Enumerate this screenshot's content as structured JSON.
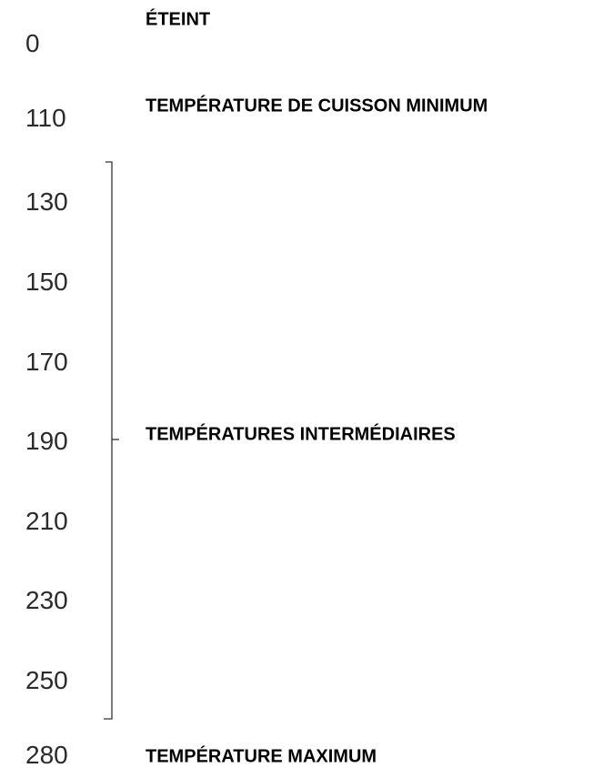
{
  "dial": [
    {
      "temp": 0,
      "label": "ÉTEINT"
    },
    {
      "temp": 110,
      "label": "TEMPÉRATURE DE CUISSON MINIMUM"
    },
    {
      "temp": 130
    },
    {
      "temp": 150
    },
    {
      "temp": 170
    },
    {
      "temp": 190
    },
    {
      "temp": 210
    },
    {
      "temp": 230
    },
    {
      "temp": 250
    },
    {
      "temp": 280,
      "label": "TEMPÉRATURE MAXIMUM"
    }
  ],
  "intermediate": {
    "label": "TEMPÉRATURES INTERMÉDIAIRES"
  }
}
